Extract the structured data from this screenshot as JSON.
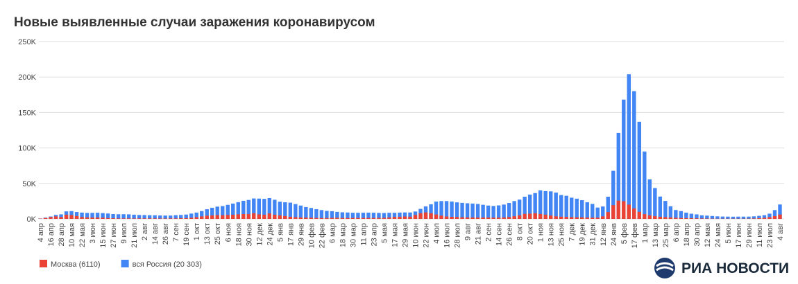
{
  "chart_data": {
    "type": "bar",
    "title": "Новые выявленные случаи заражения коронавирусом",
    "categories": [
      "4 апр",
      null,
      "16 апр",
      null,
      "28 апр",
      null,
      "10 мая",
      null,
      "22 мая",
      null,
      "3 июн",
      null,
      "15 июн",
      null,
      "27 июн",
      null,
      "9 июл",
      null,
      "21 июл",
      null,
      "2 авг",
      null,
      "14 авг",
      null,
      "26 авг",
      null,
      "7 сен",
      null,
      "19 сен",
      null,
      "1 окт",
      null,
      "13 окт",
      null,
      "25 окт",
      null,
      "6 ноя",
      null,
      "18 ноя",
      null,
      "30 ноя",
      null,
      "12 дек",
      null,
      "24 дек",
      null,
      "5 янв",
      null,
      "17 янв",
      null,
      "29 янв",
      null,
      "10 фев",
      null,
      "22 фев",
      null,
      "6 мар",
      null,
      "18 мар",
      null,
      "30 мар",
      null,
      "11 апр",
      null,
      "23 апр",
      null,
      "5 мая",
      null,
      "17 мая",
      null,
      "29 мая",
      null,
      "10 июн",
      null,
      "22 июн",
      null,
      "4 июл",
      null,
      "16 июл",
      null,
      "28 июл",
      null,
      "9 авг",
      null,
      "21 авг",
      null,
      "2 сен",
      null,
      "14 сен",
      null,
      "26 сен",
      null,
      "8 окт",
      null,
      "20 окт",
      null,
      "1 ноя",
      null,
      "13 ноя",
      null,
      "25 ноя",
      null,
      "7 дек",
      null,
      "19 дек",
      null,
      "31 дек",
      null,
      "12 янв",
      null,
      "24 янв",
      null,
      "5 фев",
      null,
      "17 фев",
      null,
      "1 мар",
      null,
      "13 мар",
      null,
      "25 мар",
      null,
      "6 апр",
      null,
      "18 апр",
      null,
      "30 апр",
      null,
      "12 мая",
      null,
      "24 мая",
      null,
      "5 июн",
      null,
      "17 июн",
      null,
      "29 июн",
      null,
      "11 июл",
      null,
      "23 июл",
      null,
      "4 авг"
    ],
    "series": [
      {
        "name": "вся Россия (20 303)",
        "color": "#4285f4",
        "values": [
          600,
          1800,
          3400,
          5600,
          6400,
          10600,
          11000,
          9700,
          8900,
          8400,
          8500,
          8600,
          8200,
          7600,
          6800,
          6600,
          6600,
          6400,
          5900,
          5500,
          5400,
          5200,
          5100,
          4800,
          4700,
          4700,
          5200,
          5500,
          6100,
          7500,
          8900,
          11100,
          13600,
          15700,
          17300,
          18100,
          19800,
          21600,
          23600,
          25500,
          26700,
          28800,
          28600,
          28200,
          29300,
          27000,
          24200,
          23400,
          22900,
          20900,
          18800,
          16700,
          15400,
          13700,
          12400,
          11300,
          10900,
          9900,
          9300,
          9000,
          8600,
          8600,
          8700,
          8800,
          8700,
          8400,
          8300,
          8600,
          8600,
          8900,
          9100,
          9000,
          10400,
          14100,
          17600,
          20600,
          24400,
          25100,
          25100,
          24500,
          23300,
          22600,
          22000,
          21600,
          21000,
          19900,
          18800,
          18200,
          19000,
          20200,
          22400,
          25100,
          27200,
          31300,
          34300,
          36400,
          40300,
          39200,
          38800,
          37100,
          33600,
          32600,
          29900,
          28500,
          26400,
          23500,
          21100,
          16000,
          17500,
          31300,
          67800,
          121200,
          168200,
          203900,
          180100,
          136900,
          95000,
          55700,
          43500,
          31500,
          25300,
          17800,
          12500,
          11000,
          8800,
          7300,
          6400,
          5000,
          4600,
          4100,
          3600,
          3300,
          3200,
          3100,
          3200,
          3200,
          3200,
          3600,
          4300,
          5200,
          7400,
          12400,
          20303
        ]
      },
      {
        "name": "Москва (6110)",
        "color": "#ea4335",
        "values": [
          400,
          1200,
          2600,
          3500,
          2600,
          5900,
          5400,
          4000,
          2600,
          2100,
          1900,
          1900,
          1700,
          1100,
          900,
          700,
          700,
          700,
          600,
          700,
          700,
          700,
          700,
          600,
          600,
          700,
          700,
          900,
          1000,
          1600,
          2400,
          3500,
          4500,
          4900,
          5300,
          5200,
          5500,
          5900,
          6400,
          6800,
          6800,
          7900,
          6400,
          5800,
          7600,
          5900,
          4900,
          4000,
          3000,
          2400,
          2000,
          1800,
          1600,
          1400,
          1200,
          1200,
          1400,
          1500,
          1300,
          1200,
          1300,
          1300,
          1300,
          1300,
          1300,
          1400,
          1500,
          2000,
          2800,
          3000,
          3400,
          3100,
          5500,
          8000,
          9100,
          8000,
          6200,
          4600,
          3400,
          2900,
          2700,
          2300,
          2100,
          2000,
          1900,
          1900,
          1900,
          1700,
          1800,
          2000,
          2600,
          3700,
          5000,
          7100,
          7400,
          8000,
          6900,
          6000,
          4700,
          3600,
          3100,
          2800,
          2400,
          2200,
          2200,
          1900,
          1700,
          1700,
          3600,
          9600,
          19300,
          25700,
          24900,
          20100,
          14700,
          9900,
          6700,
          4900,
          3700,
          3000,
          2500,
          2000,
          1500,
          1200,
          1000,
          900,
          800,
          600,
          500,
          400,
          300,
          300,
          300,
          300,
          300,
          300,
          400,
          600,
          1000,
          1500,
          2500,
          3900,
          6110
        ]
      }
    ],
    "legend_order": [
      1,
      0
    ],
    "ylim": [
      0,
      250000
    ],
    "yticks": [
      {
        "value": 0,
        "label": "0K"
      },
      {
        "value": 50000,
        "label": "50K"
      },
      {
        "value": 100000,
        "label": "100K"
      },
      {
        "value": 150000,
        "label": "150K"
      },
      {
        "value": 200000,
        "label": "200K"
      },
      {
        "value": 250000,
        "label": "250K"
      }
    ],
    "grid": true
  },
  "branding": "РИА НОВОСТИ"
}
